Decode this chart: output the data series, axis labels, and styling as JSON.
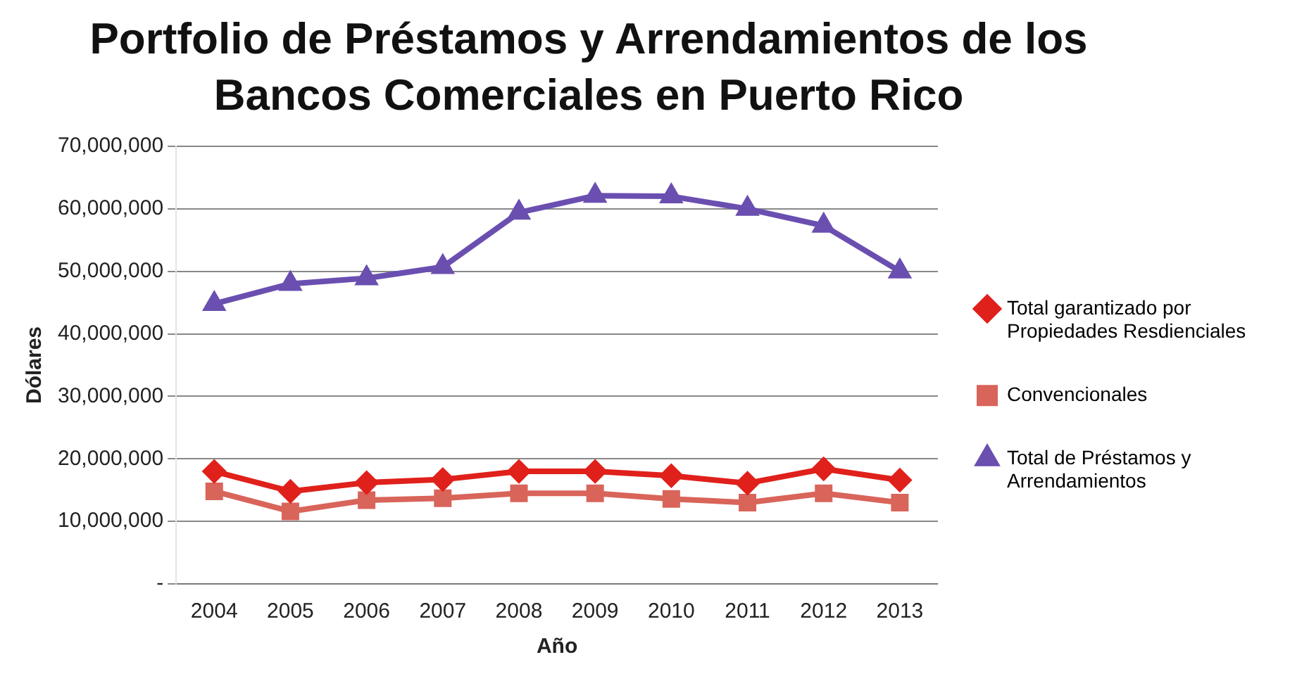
{
  "chart_data": {
    "type": "line",
    "title": "Portfolio de Préstamos y Arrendamientos de los Bancos Comerciales en Puerto Rico",
    "xlabel": "Año",
    "ylabel": "Dólares",
    "categories": [
      "2004",
      "2005",
      "2006",
      "2007",
      "2008",
      "2009",
      "2010",
      "2011",
      "2012",
      "2013"
    ],
    "series": [
      {
        "name": "Total garantizado por Propiedades Resdienciales",
        "color": "#e0201b",
        "marker": "diamond",
        "values": [
          18000000,
          14800000,
          16200000,
          16700000,
          18000000,
          18000000,
          17300000,
          16100000,
          18400000,
          16600000
        ]
      },
      {
        "name": "Convencionales",
        "color": "#d9645a",
        "marker": "square",
        "values": [
          14800000,
          11600000,
          13400000,
          13700000,
          14500000,
          14500000,
          13600000,
          13000000,
          14500000,
          13000000
        ]
      },
      {
        "name": "Total de Préstamos y Arrendamientos",
        "color": "#6a4fb0",
        "marker": "triangle",
        "values": [
          44800000,
          48000000,
          48900000,
          50700000,
          59400000,
          62100000,
          62000000,
          60000000,
          57300000,
          50000000
        ]
      }
    ],
    "ylim": [
      0,
      70000000
    ],
    "yticks": [
      {
        "value": 0,
        "label": "-"
      },
      {
        "value": 10000000,
        "label": "10,000,000"
      },
      {
        "value": 20000000,
        "label": "20,000,000"
      },
      {
        "value": 30000000,
        "label": "30,000,000"
      },
      {
        "value": 40000000,
        "label": "40,000,000"
      },
      {
        "value": 50000000,
        "label": "50,000,000"
      },
      {
        "value": 60000000,
        "label": "60,000,000"
      },
      {
        "value": 70000000,
        "label": "70,000,000"
      }
    ],
    "grid": "y",
    "legend": "right",
    "line_style": "solid"
  }
}
